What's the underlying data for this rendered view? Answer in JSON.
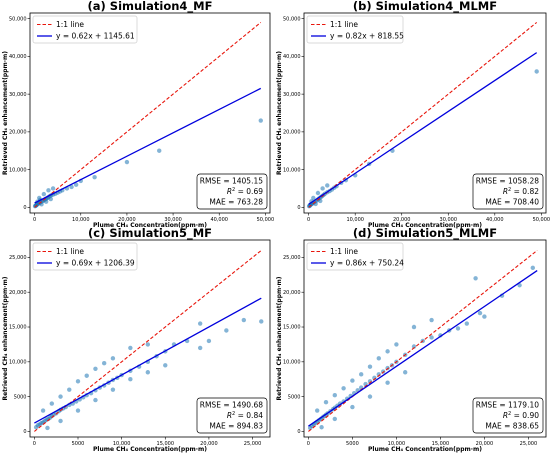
{
  "chart_data": [
    {
      "type": "scatter",
      "title": "(a) Simulation4_MF",
      "xlabel": "Plume CH₄ Concentration(ppm·m)",
      "ylabel": "Retrieved CH₄ enhancement(ppm·m)",
      "xlim": [
        -1000,
        51000
      ],
      "ylim": [
        -1500,
        51500
      ],
      "xticks": [
        0,
        10000,
        20000,
        30000,
        40000,
        50000
      ],
      "xtick_labels": [
        "0",
        "10,000",
        "20,000",
        "30,000",
        "40,000",
        "50,000"
      ],
      "yticks": [
        0,
        10000,
        20000,
        30000,
        40000,
        50000
      ],
      "ytick_labels": [
        "0",
        "10,000",
        "20,000",
        "30,000",
        "40,000",
        "50,000"
      ],
      "legend": {
        "placement": "top-left",
        "one_to_one": "1:1 line",
        "fit": "y = 0.62x + 1145.61"
      },
      "fit_line": {
        "slope": 0.62,
        "intercept": 1145.61,
        "x_range": [
          0,
          49000
        ]
      },
      "one_to_one_range": [
        0,
        49000
      ],
      "stats": {
        "rmse": "RMSE = 1405.15",
        "r2_label": "R",
        "r2_value": " = 0.69",
        "mae": "MAE = 763.28"
      },
      "points": [
        [
          100,
          300
        ],
        [
          200,
          400
        ],
        [
          300,
          500
        ],
        [
          400,
          600
        ],
        [
          500,
          700
        ],
        [
          600,
          900
        ],
        [
          800,
          1000
        ],
        [
          1000,
          1100
        ],
        [
          1200,
          1300
        ],
        [
          1500,
          1500
        ],
        [
          1800,
          1700
        ],
        [
          2000,
          1900
        ],
        [
          2300,
          2100
        ],
        [
          2500,
          2300
        ],
        [
          2800,
          2500
        ],
        [
          3000,
          2700
        ],
        [
          3300,
          3000
        ],
        [
          3600,
          3200
        ],
        [
          4000,
          3400
        ],
        [
          4500,
          3600
        ],
        [
          5000,
          3900
        ],
        [
          5500,
          4200
        ],
        [
          6000,
          4500
        ],
        [
          7000,
          5000
        ],
        [
          8000,
          5400
        ],
        [
          9000,
          6000
        ],
        [
          10000,
          7000
        ],
        [
          13000,
          8000
        ],
        [
          20000,
          12000
        ],
        [
          27000,
          15000
        ],
        [
          49000,
          23000
        ],
        [
          1000,
          2500
        ],
        [
          2000,
          3500
        ],
        [
          3000,
          4500
        ],
        [
          4000,
          5000
        ],
        [
          1500,
          800
        ],
        [
          2500,
          1500
        ],
        [
          3500,
          2200
        ],
        [
          600,
          1500
        ],
        [
          1200,
          2000
        ]
      ]
    },
    {
      "type": "scatter",
      "title": "(b) Simulation4_MLMF",
      "xlabel": "Plume CH₄ Concentration(ppm·m)",
      "ylabel": "Retrieved CH₄ enhancement(ppm·m)",
      "xlim": [
        -1000,
        51000
      ],
      "ylim": [
        -1500,
        51500
      ],
      "xticks": [
        0,
        10000,
        20000,
        30000,
        40000,
        50000
      ],
      "xtick_labels": [
        "0",
        "10,000",
        "20,000",
        "30,000",
        "40,000",
        "50,000"
      ],
      "yticks": [
        0,
        10000,
        20000,
        30000,
        40000,
        50000
      ],
      "ytick_labels": [
        "0",
        "10,000",
        "20,000",
        "30,000",
        "40,000",
        "50,000"
      ],
      "legend": {
        "placement": "top-left",
        "one_to_one": "1:1 line",
        "fit": "y = 0.82x + 818.55"
      },
      "fit_line": {
        "slope": 0.82,
        "intercept": 818.55,
        "x_range": [
          0,
          49000
        ]
      },
      "one_to_one_range": [
        0,
        49000
      ],
      "stats": {
        "rmse": "RMSE = 1058.28",
        "r2_label": "R",
        "r2_value": " = 0.82",
        "mae": "MAE = 708.40"
      },
      "points": [
        [
          100,
          300
        ],
        [
          200,
          400
        ],
        [
          300,
          500
        ],
        [
          400,
          700
        ],
        [
          500,
          800
        ],
        [
          700,
          900
        ],
        [
          900,
          1100
        ],
        [
          1100,
          1300
        ],
        [
          1400,
          1500
        ],
        [
          1700,
          1800
        ],
        [
          2000,
          2100
        ],
        [
          2300,
          2400
        ],
        [
          2600,
          2700
        ],
        [
          2900,
          3000
        ],
        [
          3200,
          3300
        ],
        [
          3500,
          3600
        ],
        [
          4000,
          4000
        ],
        [
          4500,
          4300
        ],
        [
          5000,
          4700
        ],
        [
          5500,
          5200
        ],
        [
          6000,
          5600
        ],
        [
          7000,
          6500
        ],
        [
          8000,
          7200
        ],
        [
          10000,
          8500
        ],
        [
          13000,
          11500
        ],
        [
          18000,
          15000
        ],
        [
          49000,
          36000
        ],
        [
          1000,
          2500
        ],
        [
          2000,
          3800
        ],
        [
          3000,
          5000
        ],
        [
          4000,
          5800
        ],
        [
          1500,
          900
        ],
        [
          2500,
          1700
        ],
        [
          600,
          1600
        ]
      ]
    },
    {
      "type": "scatter",
      "title": "(c) Simulation5_MF",
      "xlabel": "Plume CH₄ Concentration(ppm·m)",
      "ylabel": "Retrieved CH₄ enhancement(ppm·m)",
      "xlim": [
        -500,
        27000
      ],
      "ylim": [
        -800,
        27500
      ],
      "xticks": [
        0,
        5000,
        10000,
        15000,
        20000,
        25000
      ],
      "xtick_labels": [
        "0",
        "5000",
        "10,000",
        "15,000",
        "20,000",
        "25,000"
      ],
      "yticks": [
        0,
        5000,
        10000,
        15000,
        20000,
        25000
      ],
      "ytick_labels": [
        "0",
        "5000",
        "10,000",
        "15,000",
        "20,000",
        "25,000"
      ],
      "legend": {
        "placement": "top-left",
        "one_to_one": "1:1 line",
        "fit": "y = 0.69x + 1206.39"
      },
      "fit_line": {
        "slope": 0.69,
        "intercept": 1206.39,
        "x_range": [
          0,
          26000
        ]
      },
      "one_to_one_range": [
        0,
        26000
      ],
      "stats": {
        "rmse": "RMSE = 1490.68",
        "r2_label": "R",
        "r2_value": " = 0.84",
        "mae": "MAE = 894.83"
      },
      "points": [
        [
          200,
          600
        ],
        [
          400,
          900
        ],
        [
          600,
          1000
        ],
        [
          800,
          1200
        ],
        [
          1000,
          1300
        ],
        [
          1200,
          1500
        ],
        [
          1400,
          1700
        ],
        [
          1600,
          1800
        ],
        [
          1800,
          2000
        ],
        [
          2000,
          2200
        ],
        [
          2200,
          2400
        ],
        [
          2500,
          2600
        ],
        [
          2800,
          2900
        ],
        [
          3000,
          3100
        ],
        [
          3300,
          3300
        ],
        [
          3600,
          3500
        ],
        [
          4000,
          3800
        ],
        [
          4400,
          4000
        ],
        [
          4800,
          4300
        ],
        [
          5200,
          4600
        ],
        [
          5600,
          4900
        ],
        [
          6000,
          5200
        ],
        [
          6500,
          5500
        ],
        [
          7000,
          5900
        ],
        [
          7500,
          6300
        ],
        [
          8000,
          6600
        ],
        [
          8500,
          7000
        ],
        [
          9000,
          7400
        ],
        [
          9500,
          7700
        ],
        [
          10000,
          8100
        ],
        [
          11000,
          8700
        ],
        [
          12000,
          9300
        ],
        [
          13000,
          10000
        ],
        [
          14000,
          10800
        ],
        [
          15000,
          11500
        ],
        [
          16000,
          12500
        ],
        [
          17500,
          13000
        ],
        [
          19000,
          12000
        ],
        [
          19000,
          15500
        ],
        [
          20000,
          13000
        ],
        [
          22000,
          14500
        ],
        [
          24000,
          16000
        ],
        [
          26000,
          15800
        ],
        [
          1000,
          3000
        ],
        [
          2000,
          4000
        ],
        [
          3000,
          5000
        ],
        [
          4000,
          6000
        ],
        [
          5000,
          7200
        ],
        [
          6000,
          8000
        ],
        [
          7000,
          9000
        ],
        [
          8000,
          9800
        ],
        [
          9000,
          10500
        ],
        [
          11000,
          12000
        ],
        [
          13000,
          12500
        ],
        [
          1500,
          500
        ],
        [
          3000,
          1500
        ],
        [
          5000,
          3000
        ],
        [
          7000,
          4500
        ],
        [
          9000,
          6000
        ],
        [
          11000,
          7500
        ],
        [
          13000,
          8500
        ],
        [
          15000,
          9500
        ]
      ]
    },
    {
      "type": "scatter",
      "title": "(d) Simulation5_MLMF",
      "xlabel": "Plume CH₄ Concentration(ppm·m)",
      "ylabel": "Retrieved CH₄ enhancement(ppm·m)",
      "xlim": [
        -500,
        27000
      ],
      "ylim": [
        -800,
        27500
      ],
      "xticks": [
        0,
        5000,
        10000,
        15000,
        20000,
        25000
      ],
      "xtick_labels": [
        "0",
        "5000",
        "10,000",
        "15,000",
        "20,000",
        "25,000"
      ],
      "yticks": [
        0,
        5000,
        10000,
        15000,
        20000,
        25000
      ],
      "ytick_labels": [
        "0",
        "5000",
        "10,000",
        "15,000",
        "20,000",
        "25,000"
      ],
      "legend": {
        "placement": "top-left",
        "one_to_one": "1:1 line",
        "fit": "y = 0.86x + 750.24"
      },
      "fit_line": {
        "slope": 0.86,
        "intercept": 750.24,
        "x_range": [
          0,
          26000
        ]
      },
      "one_to_one_range": [
        0,
        26000
      ],
      "stats": {
        "rmse": "RMSE = 1179.10",
        "r2_label": "R",
        "r2_value": " = 0.90",
        "mae": "MAE = 838.65"
      },
      "points": [
        [
          200,
          500
        ],
        [
          400,
          800
        ],
        [
          600,
          1000
        ],
        [
          800,
          1200
        ],
        [
          1000,
          1400
        ],
        [
          1200,
          1600
        ],
        [
          1400,
          1800
        ],
        [
          1600,
          2000
        ],
        [
          1800,
          2200
        ],
        [
          2000,
          2400
        ],
        [
          2200,
          2600
        ],
        [
          2500,
          2900
        ],
        [
          2800,
          3200
        ],
        [
          3000,
          3400
        ],
        [
          3300,
          3700
        ],
        [
          3600,
          4000
        ],
        [
          4000,
          4300
        ],
        [
          4400,
          4700
        ],
        [
          4800,
          5100
        ],
        [
          5200,
          5500
        ],
        [
          5600,
          5900
        ],
        [
          6000,
          6300
        ],
        [
          6500,
          6800
        ],
        [
          7000,
          7200
        ],
        [
          7500,
          7700
        ],
        [
          8000,
          8200
        ],
        [
          8500,
          8600
        ],
        [
          9000,
          9100
        ],
        [
          9500,
          9500
        ],
        [
          10000,
          10000
        ],
        [
          11000,
          11000
        ],
        [
          12000,
          12200
        ],
        [
          13000,
          13000
        ],
        [
          14000,
          13500
        ],
        [
          15000,
          13800
        ],
        [
          16000,
          14500
        ],
        [
          17000,
          14800
        ],
        [
          18000,
          15500
        ],
        [
          19000,
          22000
        ],
        [
          19500,
          17000
        ],
        [
          20000,
          16500
        ],
        [
          22000,
          19500
        ],
        [
          24000,
          21000
        ],
        [
          25500,
          23500
        ],
        [
          1000,
          3000
        ],
        [
          2000,
          4200
        ],
        [
          3000,
          5200
        ],
        [
          4000,
          6200
        ],
        [
          5000,
          7300
        ],
        [
          6000,
          8200
        ],
        [
          7000,
          9300
        ],
        [
          8000,
          10500
        ],
        [
          9000,
          11500
        ],
        [
          10000,
          12500
        ],
        [
          12000,
          15000
        ],
        [
          14000,
          16000
        ],
        [
          1500,
          600
        ],
        [
          3000,
          1800
        ],
        [
          5000,
          3500
        ],
        [
          7000,
          5000
        ],
        [
          9000,
          7000
        ],
        [
          11000,
          8500
        ]
      ]
    }
  ]
}
